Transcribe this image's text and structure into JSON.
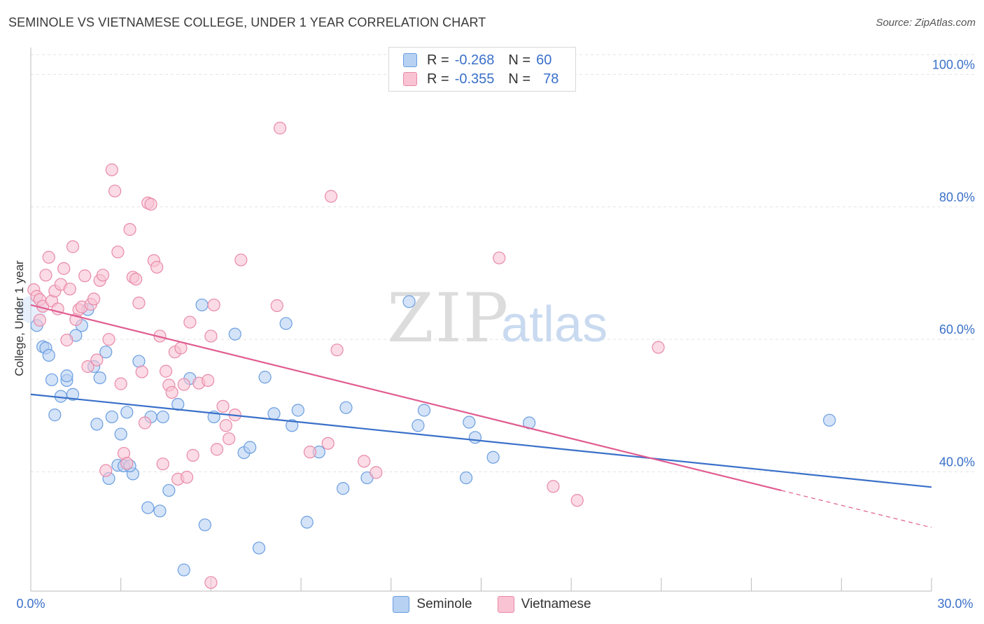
{
  "header": {
    "title": "SEMINOLE VS VIETNAMESE COLLEGE, UNDER 1 YEAR CORRELATION CHART",
    "source": "Source: ZipAtlas.com"
  },
  "legend": {
    "seminole": {
      "r_label": "R =",
      "r_value": "-0.268",
      "n_label": "N =",
      "n_value": "60"
    },
    "vietnamese": {
      "r_label": "R =",
      "r_value": "-0.355",
      "n_label": "N =",
      "n_value": "78"
    }
  },
  "bottom_legend": {
    "seminole": "Seminole",
    "vietnamese": "Vietnamese"
  },
  "watermark": {
    "zip": "ZIP",
    "atlas": "atlas"
  },
  "colors": {
    "blue": "#3a70c9",
    "blue_fill": "#b7d1f3",
    "blue_stroke": "#6a9ee0",
    "pink": "#e05c90",
    "pink_fill": "#f9c3d3",
    "pink_stroke": "#e88aa8"
  },
  "chart_data": {
    "type": "scatter",
    "title": "SEMINOLE VS VIETNAMESE COLLEGE, UNDER 1 YEAR CORRELATION CHART",
    "xlabel": "",
    "ylabel": "College, Under 1 year",
    "xlim": [
      0,
      30
    ],
    "ylim": [
      22,
      103
    ],
    "x_tick_labels": [
      "0.0%",
      "30.0%"
    ],
    "y_tick_values": [
      40,
      60,
      80,
      100
    ],
    "y_tick_labels": [
      "40.0%",
      "60.0%",
      "80.0%",
      "100.0%"
    ],
    "series": [
      {
        "name": "Seminole",
        "color": "#3a70c9",
        "trend": {
          "x": [
            0,
            30
          ],
          "y": [
            51.7,
            37.7
          ]
        },
        "points": [
          [
            0.2,
            62.1
          ],
          [
            0.4,
            58.9
          ],
          [
            0.5,
            58.7
          ],
          [
            0.6,
            57.6
          ],
          [
            0.7,
            53.9
          ],
          [
            0.8,
            48.6
          ],
          [
            1.0,
            51.4
          ],
          [
            1.2,
            53.8
          ],
          [
            1.4,
            51.7
          ],
          [
            1.5,
            60.6
          ],
          [
            1.7,
            62.1
          ],
          [
            1.9,
            64.5
          ],
          [
            2.1,
            55.9
          ],
          [
            2.2,
            47.2
          ],
          [
            2.3,
            54.2
          ],
          [
            2.5,
            58.1
          ],
          [
            2.6,
            39.0
          ],
          [
            2.7,
            48.3
          ],
          [
            2.9,
            41.0
          ],
          [
            3.0,
            45.7
          ],
          [
            3.1,
            40.9
          ],
          [
            3.2,
            49.0
          ],
          [
            3.4,
            39.7
          ],
          [
            3.6,
            56.7
          ],
          [
            3.9,
            34.6
          ],
          [
            4.0,
            48.3
          ],
          [
            4.3,
            34.1
          ],
          [
            4.6,
            37.2
          ],
          [
            4.9,
            50.2
          ],
          [
            5.1,
            25.2
          ],
          [
            5.3,
            54.1
          ],
          [
            5.7,
            65.2
          ],
          [
            5.8,
            32.0
          ],
          [
            6.1,
            48.3
          ],
          [
            6.8,
            60.8
          ],
          [
            7.1,
            42.9
          ],
          [
            7.3,
            43.7
          ],
          [
            7.6,
            28.5
          ],
          [
            7.8,
            54.3
          ],
          [
            8.1,
            48.8
          ],
          [
            8.5,
            62.4
          ],
          [
            8.7,
            47.0
          ],
          [
            8.9,
            49.3
          ],
          [
            9.2,
            32.4
          ],
          [
            9.6,
            43.0
          ],
          [
            10.4,
            37.5
          ],
          [
            10.5,
            49.7
          ],
          [
            11.2,
            39.1
          ],
          [
            12.6,
            65.7
          ],
          [
            12.9,
            47.0
          ],
          [
            13.1,
            49.3
          ],
          [
            14.5,
            39.1
          ],
          [
            14.6,
            47.5
          ],
          [
            14.8,
            45.2
          ],
          [
            15.4,
            42.2
          ],
          [
            16.6,
            47.4
          ],
          [
            26.6,
            47.8
          ],
          [
            1.2,
            54.5
          ],
          [
            3.3,
            40.9
          ],
          [
            4.4,
            48.3
          ]
        ]
      },
      {
        "name": "Vietnamese",
        "color": "#e05c90",
        "trend": {
          "x": [
            0,
            25
          ],
          "y": [
            65.2,
            37.2
          ]
        },
        "trend_dashed": {
          "x": [
            25,
            30
          ],
          "y": [
            37.2,
            31.6
          ]
        },
        "points": [
          [
            0.1,
            67.5
          ],
          [
            0.2,
            66.5
          ],
          [
            0.3,
            66.0
          ],
          [
            0.4,
            65.0
          ],
          [
            0.5,
            69.7
          ],
          [
            0.6,
            72.4
          ],
          [
            0.7,
            65.8
          ],
          [
            0.8,
            67.3
          ],
          [
            0.9,
            64.6
          ],
          [
            1.0,
            68.3
          ],
          [
            1.1,
            70.7
          ],
          [
            1.2,
            59.9
          ],
          [
            1.3,
            67.6
          ],
          [
            1.4,
            74.0
          ],
          [
            1.5,
            63.0
          ],
          [
            1.6,
            64.5
          ],
          [
            1.7,
            64.9
          ],
          [
            1.8,
            69.6
          ],
          [
            1.9,
            55.9
          ],
          [
            2.0,
            65.3
          ],
          [
            2.1,
            66.1
          ],
          [
            2.2,
            56.9
          ],
          [
            2.3,
            68.9
          ],
          [
            2.4,
            69.7
          ],
          [
            2.5,
            40.2
          ],
          [
            2.6,
            60.0
          ],
          [
            2.7,
            85.6
          ],
          [
            2.8,
            82.4
          ],
          [
            2.9,
            73.2
          ],
          [
            3.0,
            53.3
          ],
          [
            3.1,
            42.8
          ],
          [
            3.2,
            41.3
          ],
          [
            3.3,
            76.6
          ],
          [
            3.4,
            69.4
          ],
          [
            3.5,
            69.1
          ],
          [
            3.6,
            65.5
          ],
          [
            3.7,
            55.1
          ],
          [
            3.8,
            47.4
          ],
          [
            3.9,
            80.6
          ],
          [
            4.0,
            80.4
          ],
          [
            4.1,
            71.9
          ],
          [
            4.2,
            70.9
          ],
          [
            4.3,
            60.5
          ],
          [
            4.4,
            41.2
          ],
          [
            4.5,
            55.2
          ],
          [
            4.6,
            53.1
          ],
          [
            4.7,
            52.0
          ],
          [
            4.8,
            58.1
          ],
          [
            4.9,
            38.9
          ],
          [
            5.0,
            58.7
          ],
          [
            5.1,
            53.2
          ],
          [
            5.2,
            39.2
          ],
          [
            5.3,
            62.6
          ],
          [
            5.4,
            42.5
          ],
          [
            5.6,
            53.4
          ],
          [
            5.9,
            53.8
          ],
          [
            6.0,
            60.5
          ],
          [
            6.1,
            65.2
          ],
          [
            6.4,
            49.9
          ],
          [
            6.5,
            47.0
          ],
          [
            6.6,
            45.0
          ],
          [
            6.8,
            48.6
          ],
          [
            7.0,
            72.0
          ],
          [
            8.2,
            65.1
          ],
          [
            8.3,
            91.9
          ],
          [
            9.3,
            43.0
          ],
          [
            9.9,
            44.3
          ],
          [
            10.0,
            81.6
          ],
          [
            10.2,
            58.4
          ],
          [
            11.1,
            41.6
          ],
          [
            11.5,
            39.9
          ],
          [
            15.6,
            72.3
          ],
          [
            17.4,
            37.8
          ],
          [
            18.2,
            35.7
          ],
          [
            20.9,
            58.8
          ],
          [
            6.2,
            43.4
          ],
          [
            6.0,
            23.3
          ],
          [
            0.3,
            62.9
          ]
        ]
      }
    ]
  }
}
